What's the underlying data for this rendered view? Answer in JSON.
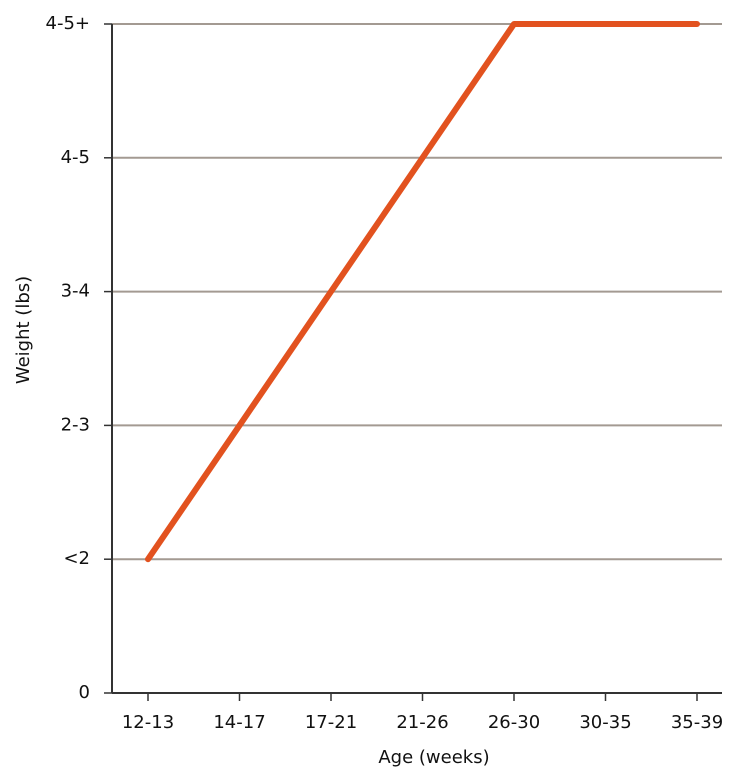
{
  "chart_data": {
    "type": "line",
    "x_label": "Age (weeks)",
    "y_label": "Weight (lbs)",
    "categories": [
      "12-13",
      "14-17",
      "17-21",
      "21-26",
      "26-30",
      "30-35",
      "35-39"
    ],
    "values": [
      1,
      2,
      3,
      4,
      5,
      5,
      5
    ],
    "color": "#e2521f",
    "ylim": [
      0,
      5
    ],
    "yticks": [
      0,
      {
        "value": 1,
        "label": "<2"
      },
      {
        "value": 2,
        "label": "2-3"
      },
      {
        "value": 3,
        "label": "3-4"
      },
      {
        "value": 4,
        "label": "4-5"
      },
      {
        "value": 5,
        "label": "4-5+"
      }
    ],
    "grid": true
  }
}
